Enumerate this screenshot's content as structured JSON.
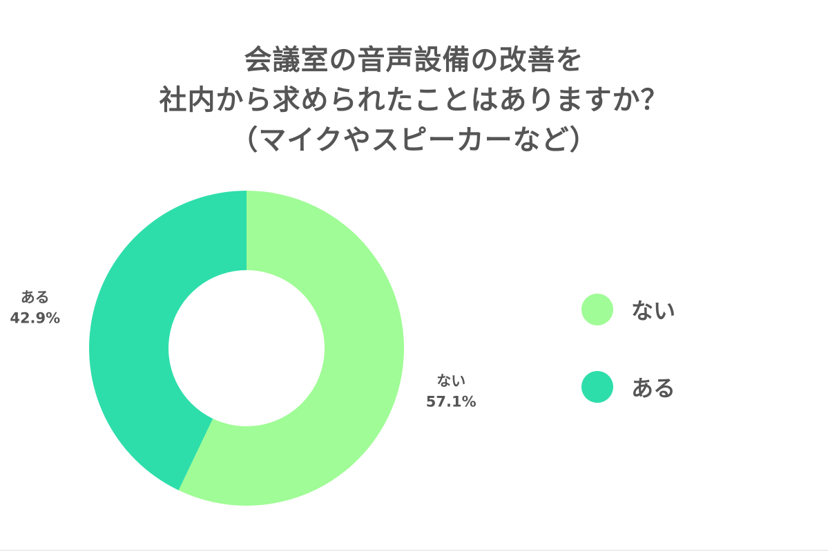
{
  "chart_data": {
    "type": "pie",
    "title": [
      "会議室の音声設備の改善を",
      "社内から求められたことはありますか？",
      "（マイクやスピーカーなど）"
    ],
    "categories": [
      "ない",
      "ある"
    ],
    "values": [
      57.1,
      42.9
    ],
    "value_labels": [
      "57.1%",
      "42.9%"
    ],
    "colors": [
      "#a0fc96",
      "#2ede aa"
    ],
    "donut": true,
    "legend_position": "right",
    "legend": [
      {
        "label": "ない",
        "color": "#a0fc96"
      },
      {
        "label": "ある",
        "color": "#2edeaa"
      }
    ]
  }
}
